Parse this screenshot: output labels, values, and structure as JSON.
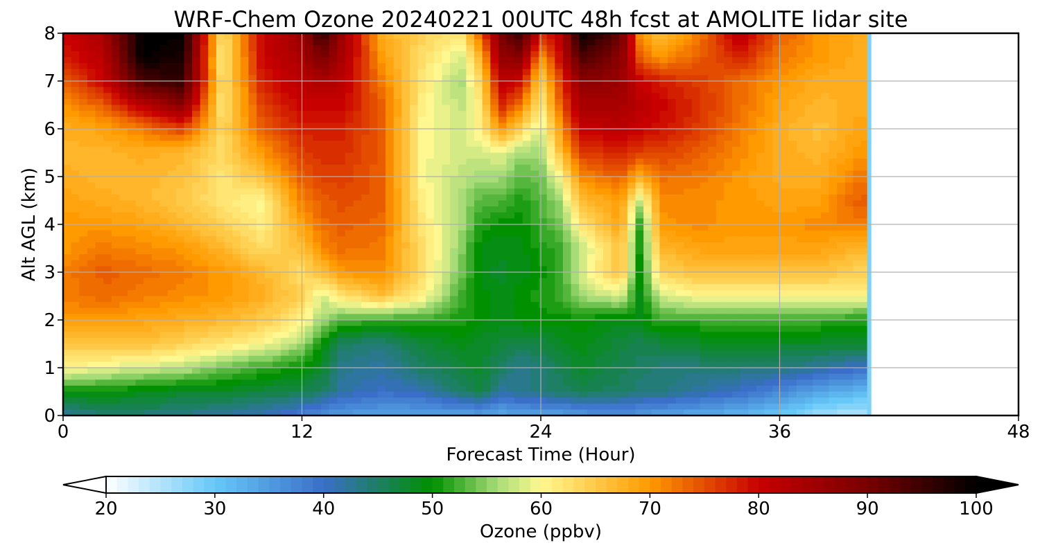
{
  "chart_data": {
    "type": "heatmap",
    "title": "WRF-Chem Ozone  20240221 00UTC 48h fcst at AMOLITE lidar site",
    "xlabel": "Forecast Time (Hour)",
    "ylabel": "Alt AGL (km)",
    "xlim": [
      0,
      48
    ],
    "ylim": [
      0,
      8
    ],
    "xticks": [
      "0",
      "12",
      "24",
      "36",
      "48"
    ],
    "yticks": [
      "0",
      "1",
      "2",
      "3",
      "4",
      "5",
      "6",
      "7",
      "8"
    ],
    "grid": true,
    "data_extent_hours": 40.5,
    "colorbar": {
      "label": "Ozone  (ppbv)",
      "min": 20,
      "max": 100,
      "ticks": [
        "20",
        "30",
        "40",
        "50",
        "60",
        "70",
        "80",
        "90",
        "100"
      ],
      "extend": "both",
      "colors": [
        {
          "v": 20,
          "c": "#ffffff"
        },
        {
          "v": 30,
          "c": "#66c8f8"
        },
        {
          "v": 40,
          "c": "#3a6ec8"
        },
        {
          "v": 50,
          "c": "#009000"
        },
        {
          "v": 56,
          "c": "#a8dc78"
        },
        {
          "v": 60,
          "c": "#fff890"
        },
        {
          "v": 70,
          "c": "#ff9a00"
        },
        {
          "v": 80,
          "c": "#c80000"
        },
        {
          "v": 90,
          "c": "#780000"
        },
        {
          "v": 100,
          "c": "#000000"
        }
      ]
    },
    "altitudes_km": [
      0,
      0.5,
      1,
      1.5,
      2,
      2.5,
      3,
      3.5,
      4,
      4.5,
      5,
      5.5,
      6,
      6.5,
      7,
      7.5,
      8
    ],
    "hours": [
      0,
      2,
      4,
      6,
      8,
      10,
      12,
      13,
      14,
      16,
      18,
      20,
      21,
      22,
      23,
      24,
      25,
      26,
      28,
      29,
      30,
      32,
      34,
      36,
      38,
      40
    ],
    "ozone_ppbv": [
      [
        42,
        44,
        44,
        43,
        42,
        41,
        38,
        36,
        35,
        34,
        34,
        34,
        34,
        33,
        34,
        34,
        34,
        35,
        36,
        35,
        34,
        33,
        32,
        30,
        26,
        25
      ],
      [
        50,
        50,
        49,
        48,
        48,
        47,
        46,
        45,
        42,
        40,
        41,
        45,
        47,
        42,
        43,
        44,
        45,
        46,
        45,
        44,
        44,
        42,
        40,
        37,
        34,
        32
      ],
      [
        61,
        59,
        58,
        57,
        54,
        52,
        50,
        48,
        43,
        42,
        45,
        47,
        48,
        45,
        43,
        44,
        46,
        48,
        46,
        45,
        44,
        44,
        44,
        44,
        42,
        40
      ],
      [
        65,
        66,
        66,
        64,
        62,
        60,
        56,
        50,
        45,
        44,
        47,
        49,
        48,
        47,
        46,
        47,
        48,
        49,
        47,
        46,
        47,
        48,
        48,
        48,
        48,
        48
      ],
      [
        70,
        70,
        69,
        68,
        67,
        65,
        61,
        56,
        53,
        52,
        52,
        51,
        50,
        49,
        50,
        50,
        50,
        50,
        49,
        49,
        52,
        52,
        52,
        52,
        52,
        51
      ],
      [
        72,
        73,
        72,
        71,
        70,
        68,
        64,
        58,
        62,
        66,
        61,
        52,
        50,
        49,
        50,
        51,
        52,
        56,
        58,
        49,
        58,
        60,
        60,
        60,
        60,
        60
      ],
      [
        72,
        74,
        73,
        72,
        70,
        67,
        63,
        66,
        70,
        71,
        63,
        54,
        49,
        48,
        49,
        50,
        52,
        58,
        66,
        49,
        64,
        66,
        66,
        66,
        66,
        64
      ],
      [
        70,
        72,
        71,
        70,
        67,
        63,
        66,
        71,
        73,
        72,
        63,
        55,
        49,
        49,
        49,
        51,
        52,
        57,
        66,
        50,
        67,
        69,
        69,
        69,
        69,
        67
      ],
      [
        70,
        70,
        69,
        67,
        64,
        61,
        69,
        73,
        74,
        73,
        62,
        56,
        51,
        50,
        50,
        52,
        54,
        62,
        69,
        51,
        70,
        71,
        70,
        70,
        71,
        72
      ],
      [
        69,
        68,
        67,
        65,
        62,
        60,
        72,
        74,
        75,
        74,
        61,
        56,
        53,
        53,
        51,
        53,
        56,
        66,
        70,
        57,
        71,
        71,
        70,
        69,
        69,
        74
      ],
      [
        68,
        67,
        67,
        66,
        62,
        66,
        74,
        76,
        76,
        74,
        60,
        57,
        56,
        56,
        53,
        54,
        60,
        71,
        74,
        68,
        73,
        72,
        70,
        68,
        68,
        72
      ],
      [
        67,
        67,
        68,
        67,
        63,
        70,
        76,
        77,
        77,
        74,
        60,
        58,
        58,
        59,
        56,
        56,
        66,
        76,
        78,
        76,
        76,
        74,
        71,
        68,
        67,
        70
      ],
      [
        68,
        69,
        72,
        76,
        63,
        74,
        78,
        78,
        78,
        74,
        60,
        58,
        61,
        70,
        64,
        58,
        70,
        80,
        82,
        80,
        79,
        76,
        72,
        68,
        66,
        69
      ],
      [
        70,
        74,
        82,
        88,
        62,
        76,
        80,
        80,
        80,
        74,
        61,
        57,
        62,
        78,
        72,
        61,
        74,
        84,
        84,
        82,
        80,
        77,
        73,
        69,
        67,
        68
      ],
      [
        74,
        80,
        94,
        96,
        62,
        78,
        82,
        84,
        82,
        72,
        62,
        56,
        64,
        82,
        80,
        64,
        76,
        88,
        86,
        80,
        78,
        76,
        73,
        70,
        68,
        68
      ],
      [
        78,
        82,
        100,
        98,
        61,
        80,
        84,
        90,
        84,
        70,
        63,
        58,
        68,
        86,
        88,
        70,
        80,
        94,
        88,
        74,
        70,
        74,
        78,
        72,
        70,
        68
      ],
      [
        80,
        84,
        100,
        100,
        62,
        80,
        86,
        96,
        86,
        68,
        64,
        62,
        74,
        90,
        96,
        78,
        82,
        100,
        92,
        70,
        66,
        72,
        82,
        74,
        70,
        68
      ]
    ]
  }
}
